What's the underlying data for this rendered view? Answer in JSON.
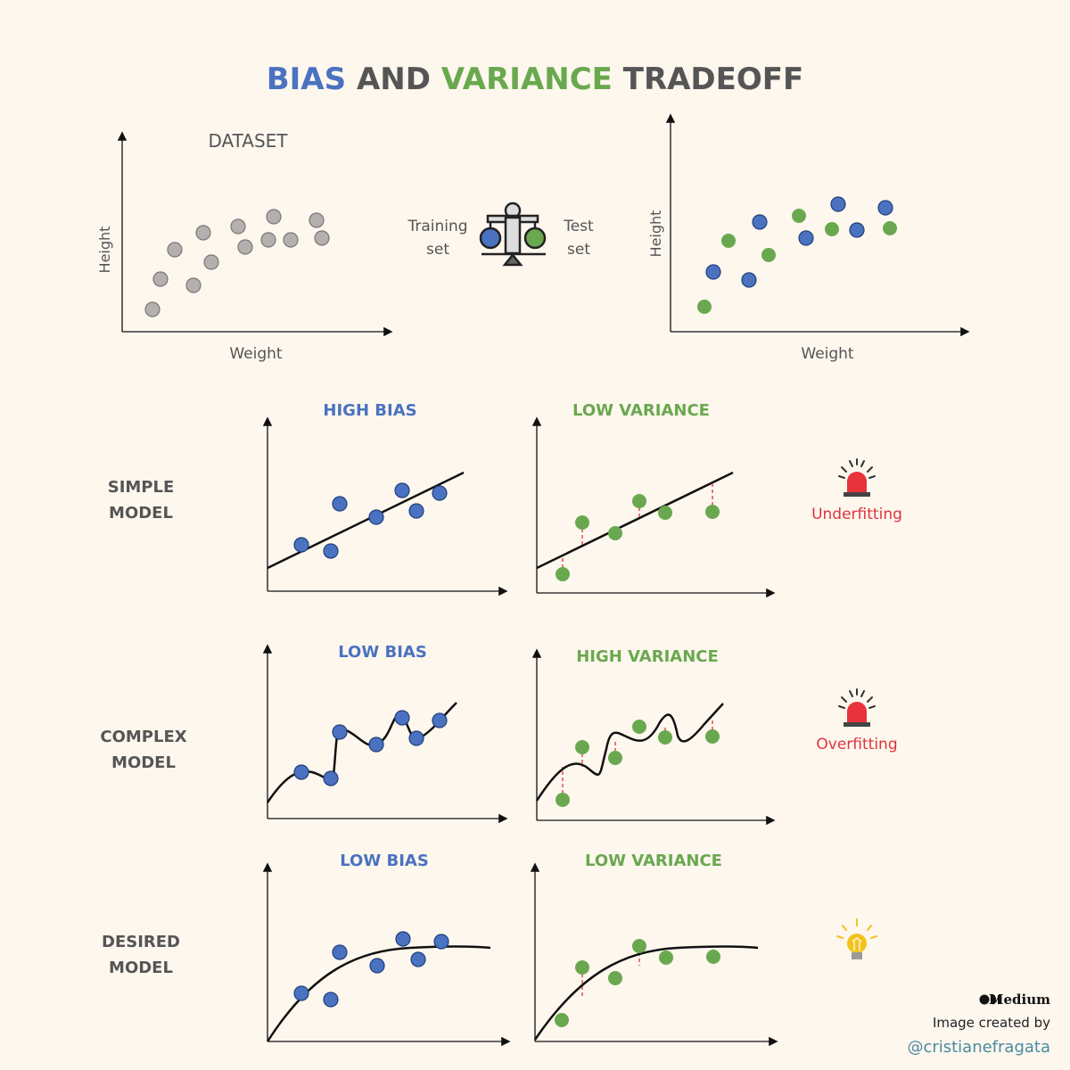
{
  "title": {
    "part1": "BIAS",
    "part2": "AND",
    "part3": "VARIANCE",
    "part4": "TRADEOFF"
  },
  "colors": {
    "blue": "#4a72c0",
    "green": "#6aa84f",
    "gray_point": "#b3b0ad",
    "text": "#555555",
    "warning": "#e0333c",
    "background": "#fdf7ee",
    "bulb": "#f2c21b"
  },
  "top": {
    "dataset_label": "DATASET",
    "xlabel_left": "Weight",
    "ylabel_left": "Height",
    "training_line1": "Training",
    "training_line2": "set",
    "test_line1": "Test",
    "test_line2": "set",
    "xlabel_right": "Weight",
    "ylabel_right": "Height",
    "icon": "balance-scale-icon"
  },
  "rows": [
    {
      "label1": "SIMPLE",
      "label2": "MODEL",
      "bias": "HIGH BIAS",
      "variance": "LOW VARIANCE",
      "outcome": "Underfitting",
      "icon": "siren-icon"
    },
    {
      "label1": "COMPLEX",
      "label2": "MODEL",
      "bias": "LOW BIAS",
      "variance": "HIGH VARIANCE",
      "outcome": "Overfitting",
      "icon": "siren-icon"
    },
    {
      "label1": "DESIRED",
      "label2": "MODEL",
      "bias": "LOW BIAS",
      "variance": "LOW VARIANCE",
      "outcome": "",
      "icon": "lightbulb-icon"
    }
  ],
  "footer": {
    "brand": "Medium",
    "credit": "Image created by",
    "handle": "@cristianefragata"
  }
}
